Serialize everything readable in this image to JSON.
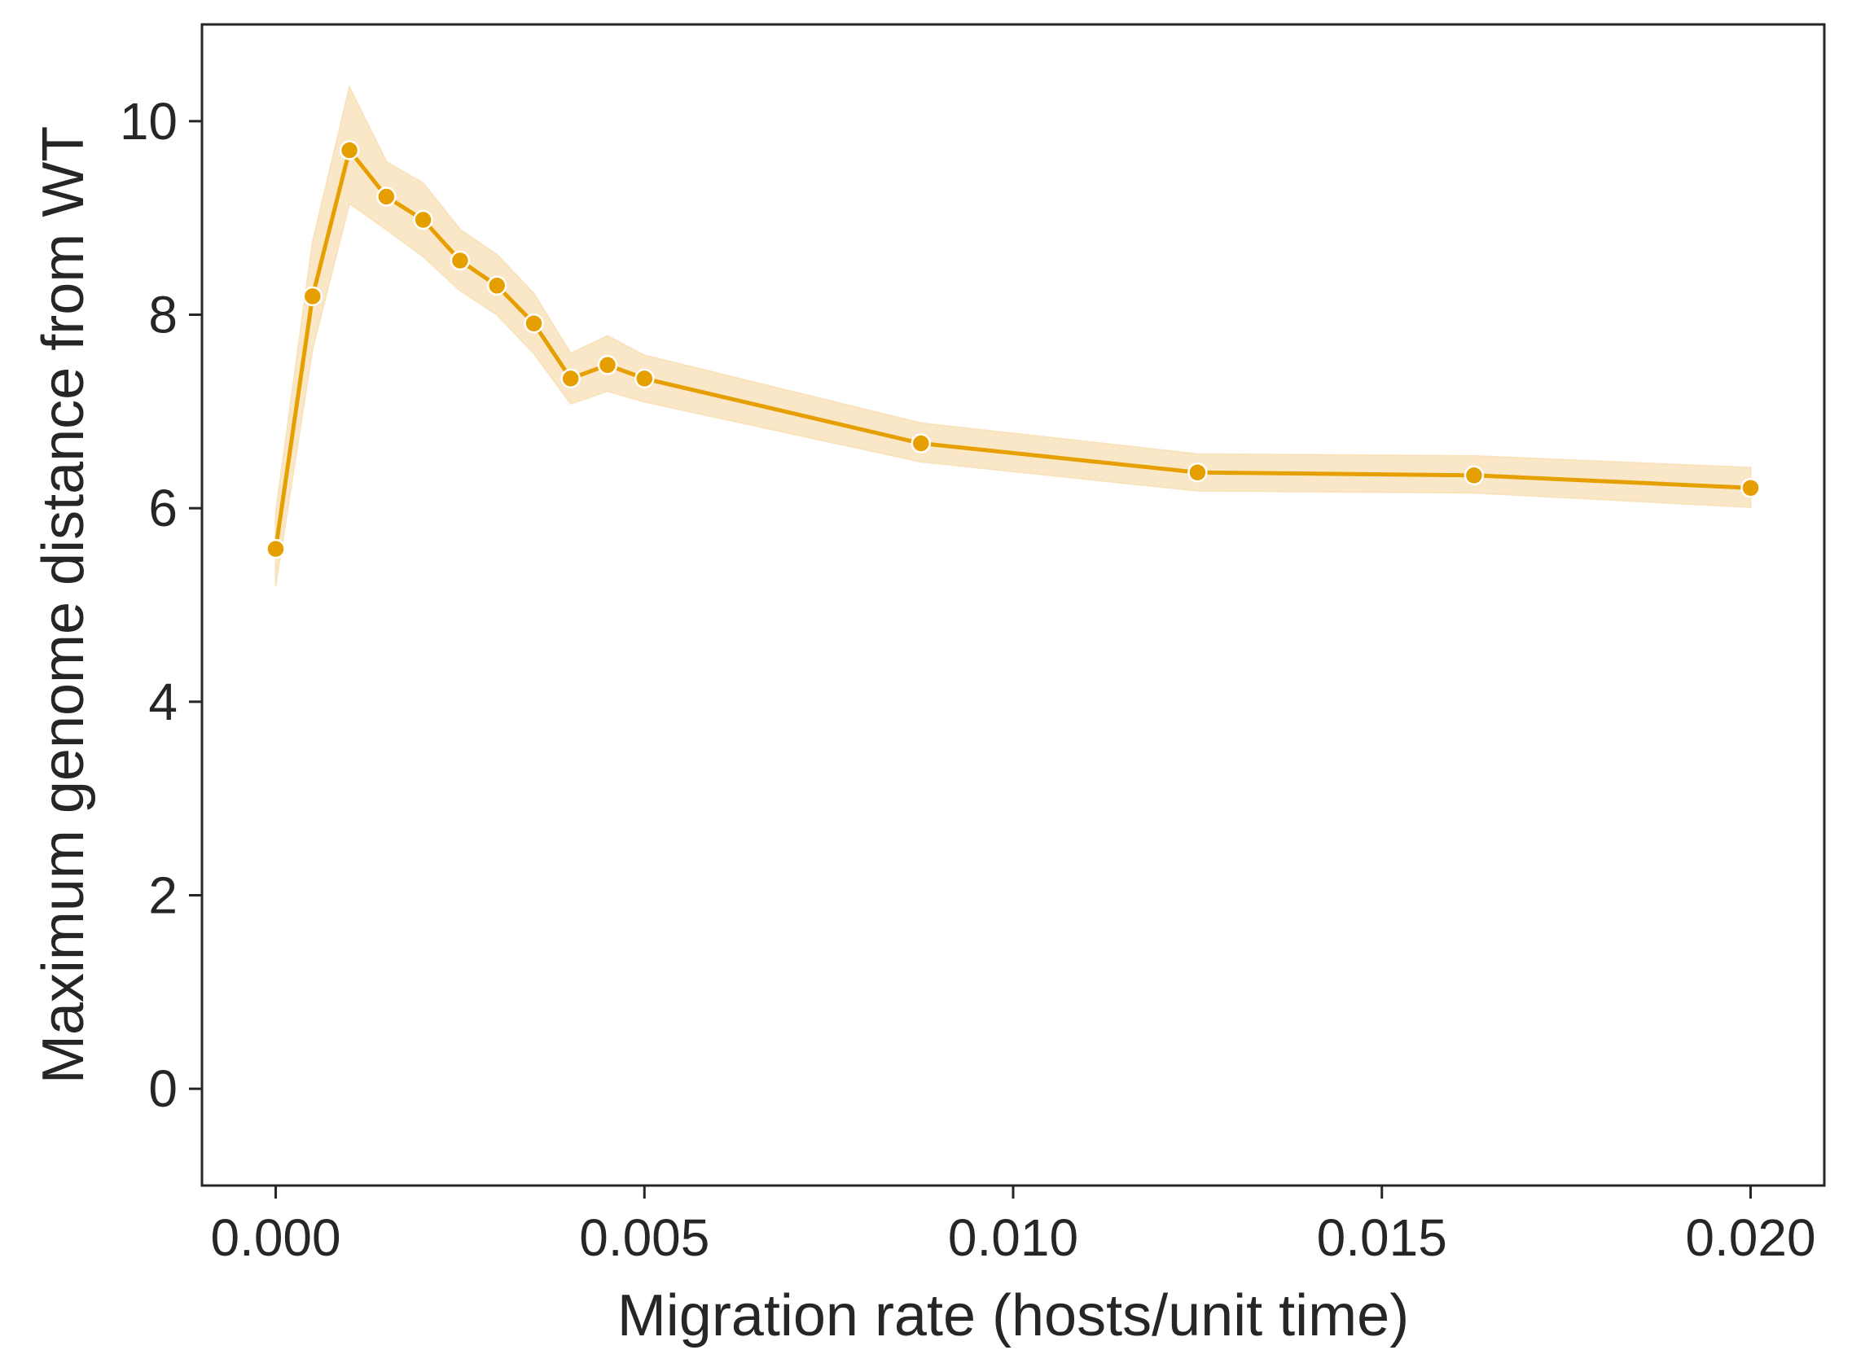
{
  "chart_data": {
    "type": "line",
    "title": "",
    "xlabel": "Migration rate (hosts/unit time)",
    "ylabel": "Maximum genome distance from WT",
    "xlim": [
      -0.001,
      0.021
    ],
    "ylim": [
      -1,
      11
    ],
    "xticks": [
      0.0,
      0.005,
      0.01,
      0.015,
      0.02
    ],
    "xtick_labels": [
      "0.000",
      "0.005",
      "0.010",
      "0.015",
      "0.020"
    ],
    "yticks": [
      0,
      2,
      4,
      6,
      8,
      10
    ],
    "ytick_labels": [
      "0",
      "2",
      "4",
      "6",
      "8",
      "10"
    ],
    "grid": false,
    "legend": "none",
    "colors": {
      "line": "#e69f00",
      "band": "#f9e3bd",
      "marker_edge": "#ffffff",
      "axes": "#262626"
    },
    "series": [
      {
        "x": [
          0.0,
          0.0005,
          0.001,
          0.0015,
          0.002,
          0.0025,
          0.003,
          0.0035,
          0.004,
          0.0045,
          0.005,
          0.00875,
          0.0125,
          0.01625,
          0.02
        ],
        "y": [
          5.58,
          8.19,
          9.7,
          9.22,
          8.98,
          8.56,
          8.3,
          7.91,
          7.34,
          7.48,
          7.34,
          6.67,
          6.37,
          6.34,
          6.21
        ],
        "ci_low": [
          5.2,
          7.65,
          9.15,
          8.88,
          8.6,
          8.25,
          8.0,
          7.6,
          7.08,
          7.21,
          7.1,
          6.48,
          6.18,
          6.16,
          6.01
        ],
        "ci_high": [
          5.95,
          8.75,
          10.35,
          9.58,
          9.36,
          8.88,
          8.62,
          8.22,
          7.6,
          7.78,
          7.58,
          6.88,
          6.56,
          6.54,
          6.42
        ]
      }
    ]
  }
}
